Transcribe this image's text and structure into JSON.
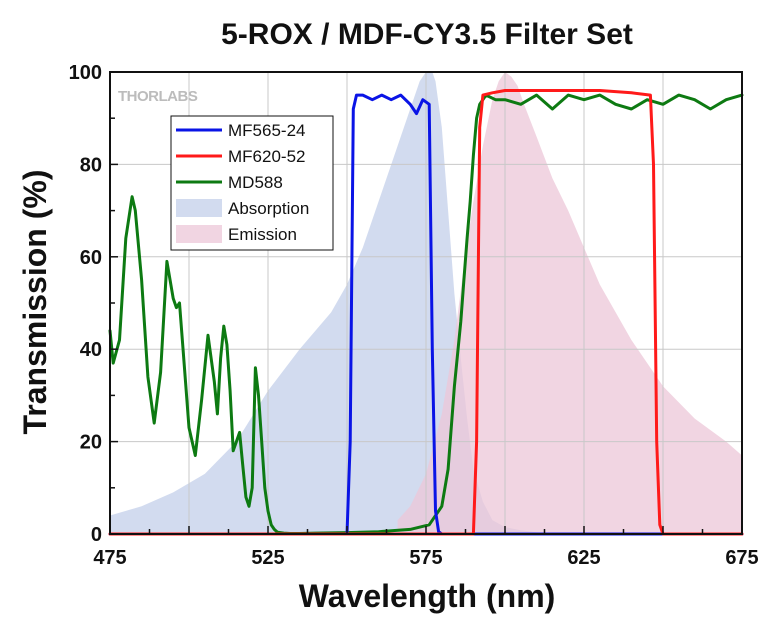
{
  "chart_data": {
    "type": "line",
    "title": "5-ROX / MDF-CY3.5 Filter Set",
    "xlabel": "Wavelength (nm)",
    "ylabel": "Transmission (%)",
    "xlim": [
      475,
      675
    ],
    "ylim": [
      0,
      100
    ],
    "xticks": [
      475,
      525,
      575,
      625,
      675
    ],
    "yticks": [
      0,
      20,
      40,
      60,
      80,
      100
    ],
    "x_tick_labels": [
      "475",
      "525",
      "575",
      "625",
      "675"
    ],
    "y_tick_labels": [
      "0",
      "20",
      "40",
      "60",
      "80",
      "100"
    ],
    "grid": true,
    "legend_position": "upper-left",
    "watermark": "THORLABS",
    "series": [
      {
        "name": "MF565-24",
        "kind": "line",
        "color": "#0a14e6",
        "x": [
          475,
          550,
          551,
          552,
          553,
          555,
          558,
          561,
          564,
          567,
          570,
          572,
          574,
          576,
          577,
          578,
          579,
          580,
          675
        ],
        "y": [
          0,
          0,
          20,
          92,
          95,
          95,
          94,
          95,
          94,
          95,
          93,
          91,
          94,
          93,
          40,
          5,
          0.5,
          0,
          0
        ]
      },
      {
        "name": "MF620-52",
        "kind": "line",
        "color": "#ff1a1a",
        "x": [
          475,
          590,
          591,
          592,
          593,
          596,
          600,
          610,
          620,
          630,
          640,
          646,
          647,
          648,
          649,
          650,
          675
        ],
        "y": [
          0,
          0,
          20,
          88,
          95,
          95.5,
          96,
          96,
          96,
          96,
          95.5,
          95,
          80,
          20,
          2,
          0,
          0
        ]
      },
      {
        "name": "MD588",
        "kind": "line",
        "color": "#0d7a12",
        "x": [
          475,
          476,
          478,
          480,
          482,
          483,
          485,
          487,
          489,
          491,
          493,
          495,
          496,
          497,
          498,
          500,
          502,
          504,
          506,
          508,
          509,
          510,
          511,
          512,
          513,
          514,
          515,
          516,
          517,
          518,
          519,
          520,
          521,
          522,
          523,
          524,
          525,
          526,
          527,
          528,
          530,
          532,
          535,
          540,
          550,
          560,
          570,
          576,
          580,
          582,
          584,
          586,
          587,
          588,
          589,
          590,
          591,
          592,
          594,
          597,
          600,
          605,
          610,
          615,
          620,
          625,
          630,
          635,
          640,
          645,
          650,
          655,
          660,
          665,
          670,
          675
        ],
        "y": [
          44,
          37,
          42,
          64,
          73,
          70,
          55,
          34,
          24,
          35,
          59,
          51,
          49,
          50,
          41,
          23,
          17,
          29,
          43,
          33,
          26,
          38,
          45,
          41,
          31,
          18,
          20,
          22,
          15,
          8,
          6,
          10,
          36,
          30,
          20,
          10,
          5,
          2,
          1,
          0.4,
          0.2,
          0.1,
          0.1,
          0.2,
          0.3,
          0.5,
          1,
          2,
          6,
          14,
          32,
          46,
          55,
          64,
          72,
          82,
          90,
          93,
          95,
          94,
          94,
          93,
          95,
          92,
          95,
          94,
          95,
          93,
          92,
          94,
          93,
          95,
          94,
          92,
          94,
          95
        ]
      },
      {
        "name": "Absorption",
        "kind": "area",
        "color": "#c3cfe9",
        "x": [
          475,
          485,
          495,
          505,
          515,
          525,
          535,
          545,
          550,
          555,
          560,
          565,
          570,
          573,
          575,
          577,
          578,
          580,
          582,
          584,
          586,
          588,
          590,
          593,
          596,
          600,
          605,
          610,
          615,
          620,
          625
        ],
        "y": [
          4,
          6,
          9,
          13,
          20,
          31,
          40,
          48,
          54,
          62,
          72,
          82,
          92,
          98,
          100,
          100,
          98,
          88,
          70,
          52,
          38,
          25,
          14,
          7,
          3,
          1.5,
          0.8,
          0.4,
          0.2,
          0.1,
          0
        ]
      },
      {
        "name": "Emission",
        "kind": "area",
        "color": "#ecc7d8",
        "x": [
          566,
          570,
          575,
          580,
          584,
          587,
          590,
          593,
          596,
          598,
          600,
          602,
          604,
          606,
          610,
          615,
          620,
          625,
          630,
          640,
          650,
          660,
          670,
          675
        ],
        "y": [
          3,
          6,
          13,
          26,
          42,
          58,
          72,
          84,
          94,
          98,
          100,
          99,
          97,
          93,
          86,
          77,
          70,
          62,
          54,
          42,
          32,
          25,
          20,
          17
        ]
      }
    ]
  }
}
